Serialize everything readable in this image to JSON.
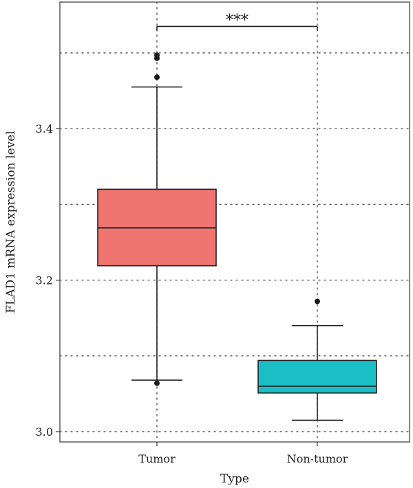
{
  "chart_data": {
    "type": "box",
    "xlabel": "Type",
    "ylabel": "FLAD1 mRNA expression level",
    "ylim": [
      2.995,
      3.56
    ],
    "y_ticks": [
      3.0,
      3.2,
      3.4
    ],
    "y_ticks_labels": [
      "3.0",
      "3.2",
      "3.4"
    ],
    "minor_grid_y": [
      3.1,
      3.3,
      3.5
    ],
    "grid": true,
    "grid_style": "dotted",
    "categories": [
      "Tumor",
      "Non-tumor"
    ],
    "boxes": [
      {
        "category": "Tumor",
        "color": "#F07570",
        "whisker_low": 3.068,
        "q1": 3.219,
        "median": 3.269,
        "q3": 3.32,
        "whisker_high": 3.455,
        "outliers": [
          3.064,
          3.468,
          3.493,
          3.497
        ]
      },
      {
        "category": "Non-tumor",
        "color": "#1ABFC5",
        "whisker_low": 3.015,
        "q1": 3.051,
        "median": 3.06,
        "q3": 3.094,
        "whisker_high": 3.14,
        "outliers": [
          3.172
        ]
      }
    ],
    "significance": {
      "label": "***",
      "between": [
        "Tumor",
        "Non-tumor"
      ],
      "y": 3.535
    }
  }
}
